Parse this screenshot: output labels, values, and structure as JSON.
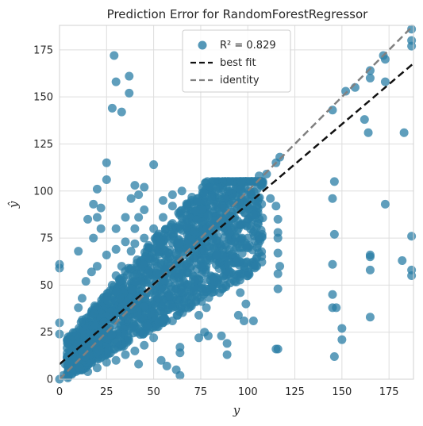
{
  "chart_data": {
    "type": "scatter",
    "title": "Prediction Error for RandomForestRegressor",
    "xlabel": "y",
    "ylabel": "ŷ",
    "xlim": [
      0,
      188
    ],
    "ylim": [
      0,
      188
    ],
    "xticks": [
      0,
      25,
      50,
      75,
      100,
      125,
      150,
      175
    ],
    "yticks": [
      0,
      25,
      50,
      75,
      100,
      125,
      150,
      175
    ],
    "grid": true,
    "legend_position": "top-center",
    "colors": {
      "points": "#2a7ea6",
      "best_fit": "#111111",
      "identity": "#808080"
    },
    "legend": [
      {
        "label": "R² = 0.829",
        "marker": "circle"
      },
      {
        "label": "best fit",
        "marker": "dashed-line-black"
      },
      {
        "label": "identity",
        "marker": "dashed-line-gray"
      }
    ],
    "best_fit_line": {
      "slope": 0.85,
      "intercept": 8
    },
    "identity_line": {
      "slope": 1,
      "intercept": 0
    },
    "points": [
      [
        29,
        172
      ],
      [
        37,
        161
      ],
      [
        30,
        158
      ],
      [
        37,
        152
      ],
      [
        28,
        144
      ],
      [
        33,
        142
      ],
      [
        25,
        115
      ],
      [
        25,
        106
      ],
      [
        50,
        114
      ],
      [
        40,
        103
      ],
      [
        45,
        102
      ],
      [
        42,
        98
      ],
      [
        38,
        96
      ],
      [
        20,
        101
      ],
      [
        18,
        93
      ],
      [
        22,
        91
      ],
      [
        20,
        86
      ],
      [
        35,
        86
      ],
      [
        15,
        85
      ],
      [
        22,
        80
      ],
      [
        18,
        75
      ],
      [
        10,
        68
      ],
      [
        30,
        80
      ],
      [
        45,
        90
      ],
      [
        55,
        95
      ],
      [
        60,
        98
      ],
      [
        65,
        100
      ],
      [
        106,
        108
      ],
      [
        110,
        109
      ],
      [
        115,
        115
      ],
      [
        117,
        118
      ],
      [
        105,
        101
      ],
      [
        108,
        104
      ],
      [
        112,
        96
      ],
      [
        115,
        92
      ],
      [
        116,
        85
      ],
      [
        116,
        78
      ],
      [
        116,
        75
      ],
      [
        116,
        67
      ],
      [
        117,
        60
      ],
      [
        116,
        56
      ],
      [
        116,
        48
      ],
      [
        116,
        16
      ],
      [
        115,
        16
      ],
      [
        145,
        143
      ],
      [
        152,
        153
      ],
      [
        157,
        155
      ],
      [
        165,
        164
      ],
      [
        172,
        172
      ],
      [
        173,
        170
      ],
      [
        187,
        186
      ],
      [
        187,
        180
      ],
      [
        187,
        177
      ],
      [
        165,
        160
      ],
      [
        173,
        158
      ],
      [
        183,
        131
      ],
      [
        162,
        138
      ],
      [
        164,
        131
      ],
      [
        146,
        105
      ],
      [
        145,
        96
      ],
      [
        146,
        77
      ],
      [
        145,
        61
      ],
      [
        145,
        45
      ],
      [
        145,
        38
      ],
      [
        147,
        38
      ],
      [
        150,
        27
      ],
      [
        150,
        21
      ],
      [
        146,
        12
      ],
      [
        165,
        66
      ],
      [
        165,
        65
      ],
      [
        173,
        93
      ],
      [
        165,
        58
      ],
      [
        165,
        33
      ],
      [
        182,
        63
      ],
      [
        187,
        76
      ],
      [
        187,
        58
      ],
      [
        187,
        55
      ],
      [
        0,
        61
      ],
      [
        0,
        59
      ],
      [
        0,
        30
      ],
      [
        0,
        24
      ],
      [
        0,
        0
      ],
      [
        2,
        2
      ],
      [
        5,
        5
      ],
      [
        3,
        8
      ],
      [
        64,
        14
      ],
      [
        64,
        17
      ],
      [
        60,
        31
      ],
      [
        55,
        30
      ],
      [
        50,
        38
      ],
      [
        62,
        48
      ],
      [
        70,
        60
      ],
      [
        75,
        63
      ],
      [
        80,
        70
      ],
      [
        85,
        72
      ],
      [
        88,
        80
      ],
      [
        90,
        84
      ],
      [
        93,
        86
      ],
      [
        95,
        80
      ],
      [
        97,
        75
      ],
      [
        100,
        75
      ],
      [
        102,
        62
      ],
      [
        98,
        60
      ],
      [
        92,
        53
      ],
      [
        85,
        46
      ],
      [
        78,
        38
      ],
      [
        74,
        34
      ],
      [
        70,
        40
      ],
      [
        77,
        25
      ],
      [
        74,
        22
      ],
      [
        79,
        23
      ],
      [
        86,
        23
      ],
      [
        89,
        13
      ],
      [
        89,
        19
      ],
      [
        95,
        34
      ],
      [
        98,
        31
      ],
      [
        103,
        31
      ],
      [
        100,
        55
      ],
      [
        101,
        71
      ],
      [
        103,
        90
      ],
      [
        96,
        95
      ],
      [
        90,
        93
      ],
      [
        84,
        87
      ],
      [
        80,
        82
      ],
      [
        75,
        87
      ],
      [
        70,
        89
      ],
      [
        68,
        93
      ],
      [
        60,
        92
      ],
      [
        55,
        86
      ],
      [
        50,
        80
      ],
      [
        45,
        75
      ],
      [
        40,
        72
      ],
      [
        38,
        68
      ],
      [
        33,
        60
      ],
      [
        30,
        55
      ],
      [
        28,
        50
      ],
      [
        25,
        44
      ],
      [
        22,
        40
      ],
      [
        20,
        34
      ],
      [
        18,
        30
      ],
      [
        15,
        26
      ],
      [
        12,
        20
      ],
      [
        10,
        15
      ],
      [
        8,
        12
      ],
      [
        6,
        8
      ],
      [
        10,
        38
      ],
      [
        12,
        43
      ],
      [
        14,
        52
      ],
      [
        17,
        57
      ],
      [
        20,
        60
      ],
      [
        25,
        66
      ],
      [
        30,
        69
      ],
      [
        35,
        73
      ],
      [
        40,
        80
      ],
      [
        42,
        86
      ],
      [
        48,
        64
      ],
      [
        52,
        58
      ],
      [
        55,
        50
      ],
      [
        58,
        45
      ],
      [
        60,
        40
      ],
      [
        50,
        22
      ],
      [
        45,
        18
      ],
      [
        40,
        15
      ],
      [
        35,
        13
      ],
      [
        30,
        10
      ],
      [
        25,
        9
      ],
      [
        20,
        6
      ],
      [
        15,
        4
      ],
      [
        42,
        8
      ],
      [
        54,
        10
      ],
      [
        57,
        7
      ],
      [
        62,
        5
      ],
      [
        64,
        2
      ],
      [
        48,
        30
      ],
      [
        44,
        36
      ],
      [
        38,
        40
      ],
      [
        35,
        45
      ],
      [
        32,
        38
      ],
      [
        28,
        32
      ],
      [
        24,
        28
      ],
      [
        22,
        22
      ],
      [
        66,
        70
      ],
      [
        70,
        74
      ],
      [
        72,
        78
      ],
      [
        76,
        80
      ],
      [
        82,
        76
      ],
      [
        86,
        66
      ],
      [
        88,
        58
      ],
      [
        92,
        64
      ],
      [
        94,
        70
      ],
      [
        96,
        46
      ],
      [
        99,
        40
      ],
      [
        104,
        95
      ],
      [
        107,
        103
      ],
      [
        102,
        98
      ],
      [
        100,
        92
      ]
    ]
  }
}
